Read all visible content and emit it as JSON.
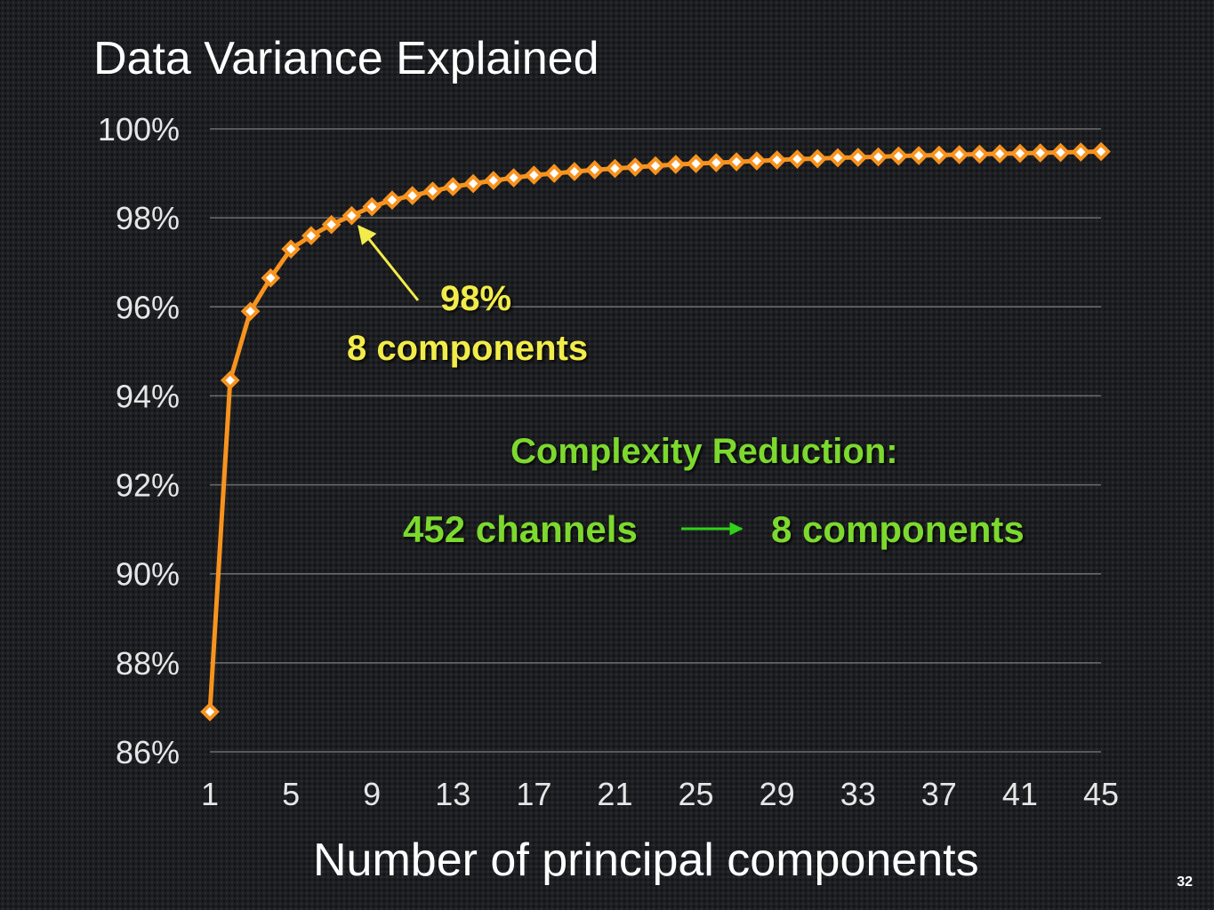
{
  "slide": {
    "page_number": "32"
  },
  "annotations": {
    "percent": "98%",
    "components": "8 components",
    "reduction_heading": "Complexity Reduction:",
    "reduction_from": "452 channels",
    "reduction_to": "8 components"
  },
  "colors": {
    "series": "#f7931e",
    "marker_fill": "#ffffff",
    "callout": "#f2ec4a",
    "reduction": "#7cd92e",
    "grid": "#6e6e6e",
    "text": "#ffffff"
  },
  "chart_data": {
    "type": "line",
    "title": "Data Variance Explained",
    "xlabel": "Number of principal components",
    "ylabel": "",
    "xlim": [
      1,
      45
    ],
    "ylim": [
      86,
      100
    ],
    "ytick_labels": [
      "100%",
      "98%",
      "96%",
      "94%",
      "92%",
      "90%",
      "88%",
      "86%"
    ],
    "ytick_values": [
      100,
      98,
      96,
      94,
      92,
      90,
      88,
      86
    ],
    "xtick_labels": [
      "1",
      "5",
      "9",
      "13",
      "17",
      "21",
      "25",
      "29",
      "33",
      "37",
      "41",
      "45"
    ],
    "xtick_values": [
      1,
      5,
      9,
      13,
      17,
      21,
      25,
      29,
      33,
      37,
      41,
      45
    ],
    "grid": "horizontal",
    "legend": "none",
    "series": [
      {
        "x": [
          1,
          2,
          3,
          4,
          5,
          6,
          7,
          8,
          9,
          10,
          11,
          12,
          13,
          14,
          15,
          16,
          17,
          18,
          19,
          20,
          21,
          22,
          23,
          24,
          25,
          26,
          27,
          28,
          29,
          30,
          31,
          32,
          33,
          34,
          35,
          36,
          37,
          38,
          39,
          40,
          41,
          42,
          43,
          44,
          45
        ],
        "values": [
          86.9,
          94.35,
          95.9,
          96.65,
          97.3,
          97.6,
          97.85,
          98.05,
          98.25,
          98.4,
          98.5,
          98.6,
          98.7,
          98.77,
          98.84,
          98.9,
          98.96,
          99.0,
          99.04,
          99.08,
          99.11,
          99.14,
          99.17,
          99.2,
          99.22,
          99.24,
          99.26,
          99.28,
          99.3,
          99.32,
          99.33,
          99.35,
          99.36,
          99.37,
          99.39,
          99.4,
          99.41,
          99.42,
          99.43,
          99.44,
          99.45,
          99.46,
          99.47,
          99.48,
          99.49
        ]
      }
    ],
    "callout_x": 8
  }
}
